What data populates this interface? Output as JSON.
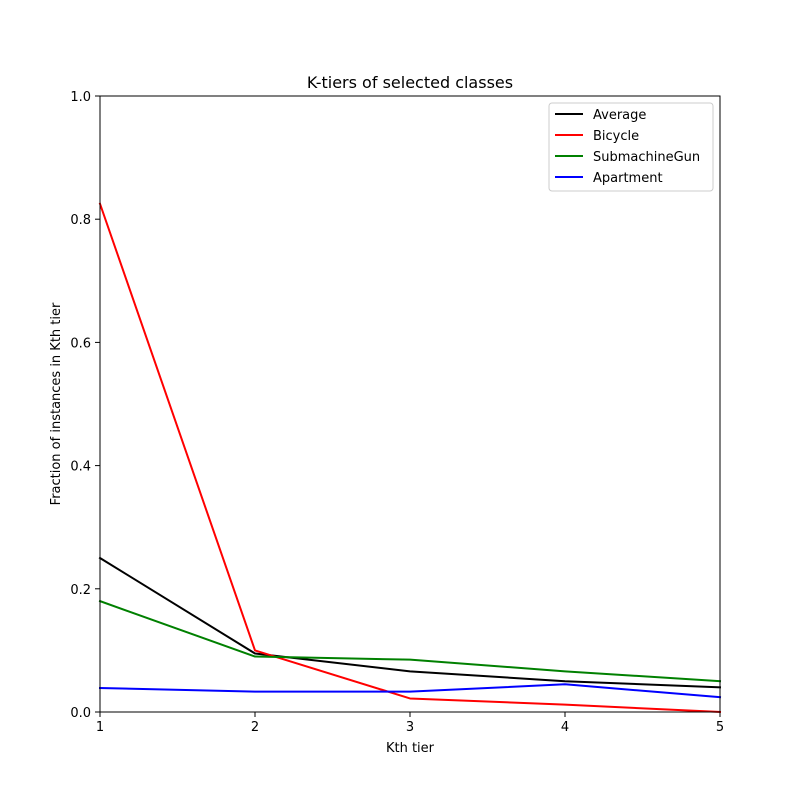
{
  "chart_data": {
    "type": "line",
    "title": "K-tiers of selected classes",
    "xlabel": "Kth tier",
    "ylabel": "Fraction of instances in Kth tier",
    "x": [
      1,
      2,
      3,
      4,
      5
    ],
    "xlim": [
      1,
      5
    ],
    "ylim": [
      0,
      1.0
    ],
    "xticks": [
      "1",
      "2",
      "3",
      "4",
      "5"
    ],
    "yticks": [
      {
        "value": 0.0,
        "label": "0.0"
      },
      {
        "value": 0.2,
        "label": "0.2"
      },
      {
        "value": 0.4,
        "label": "0.4"
      },
      {
        "value": 0.6,
        "label": "0.6"
      },
      {
        "value": 0.8,
        "label": "0.8"
      },
      {
        "value": 1.0,
        "label": "1.0"
      }
    ],
    "grid": false,
    "legend_position": "top-right",
    "series": [
      {
        "name": "Average",
        "color": "#000000",
        "values": [
          0.25,
          0.095,
          0.066,
          0.05,
          0.04
        ]
      },
      {
        "name": "Bicycle",
        "color": "#ff0000",
        "values": [
          0.825,
          0.1,
          0.022,
          0.012,
          0.0
        ]
      },
      {
        "name": "SubmachineGun",
        "color": "#008000",
        "values": [
          0.18,
          0.09,
          0.085,
          0.066,
          0.05
        ]
      },
      {
        "name": "Apartment",
        "color": "#0000ff",
        "values": [
          0.039,
          0.033,
          0.033,
          0.045,
          0.024
        ]
      }
    ]
  }
}
